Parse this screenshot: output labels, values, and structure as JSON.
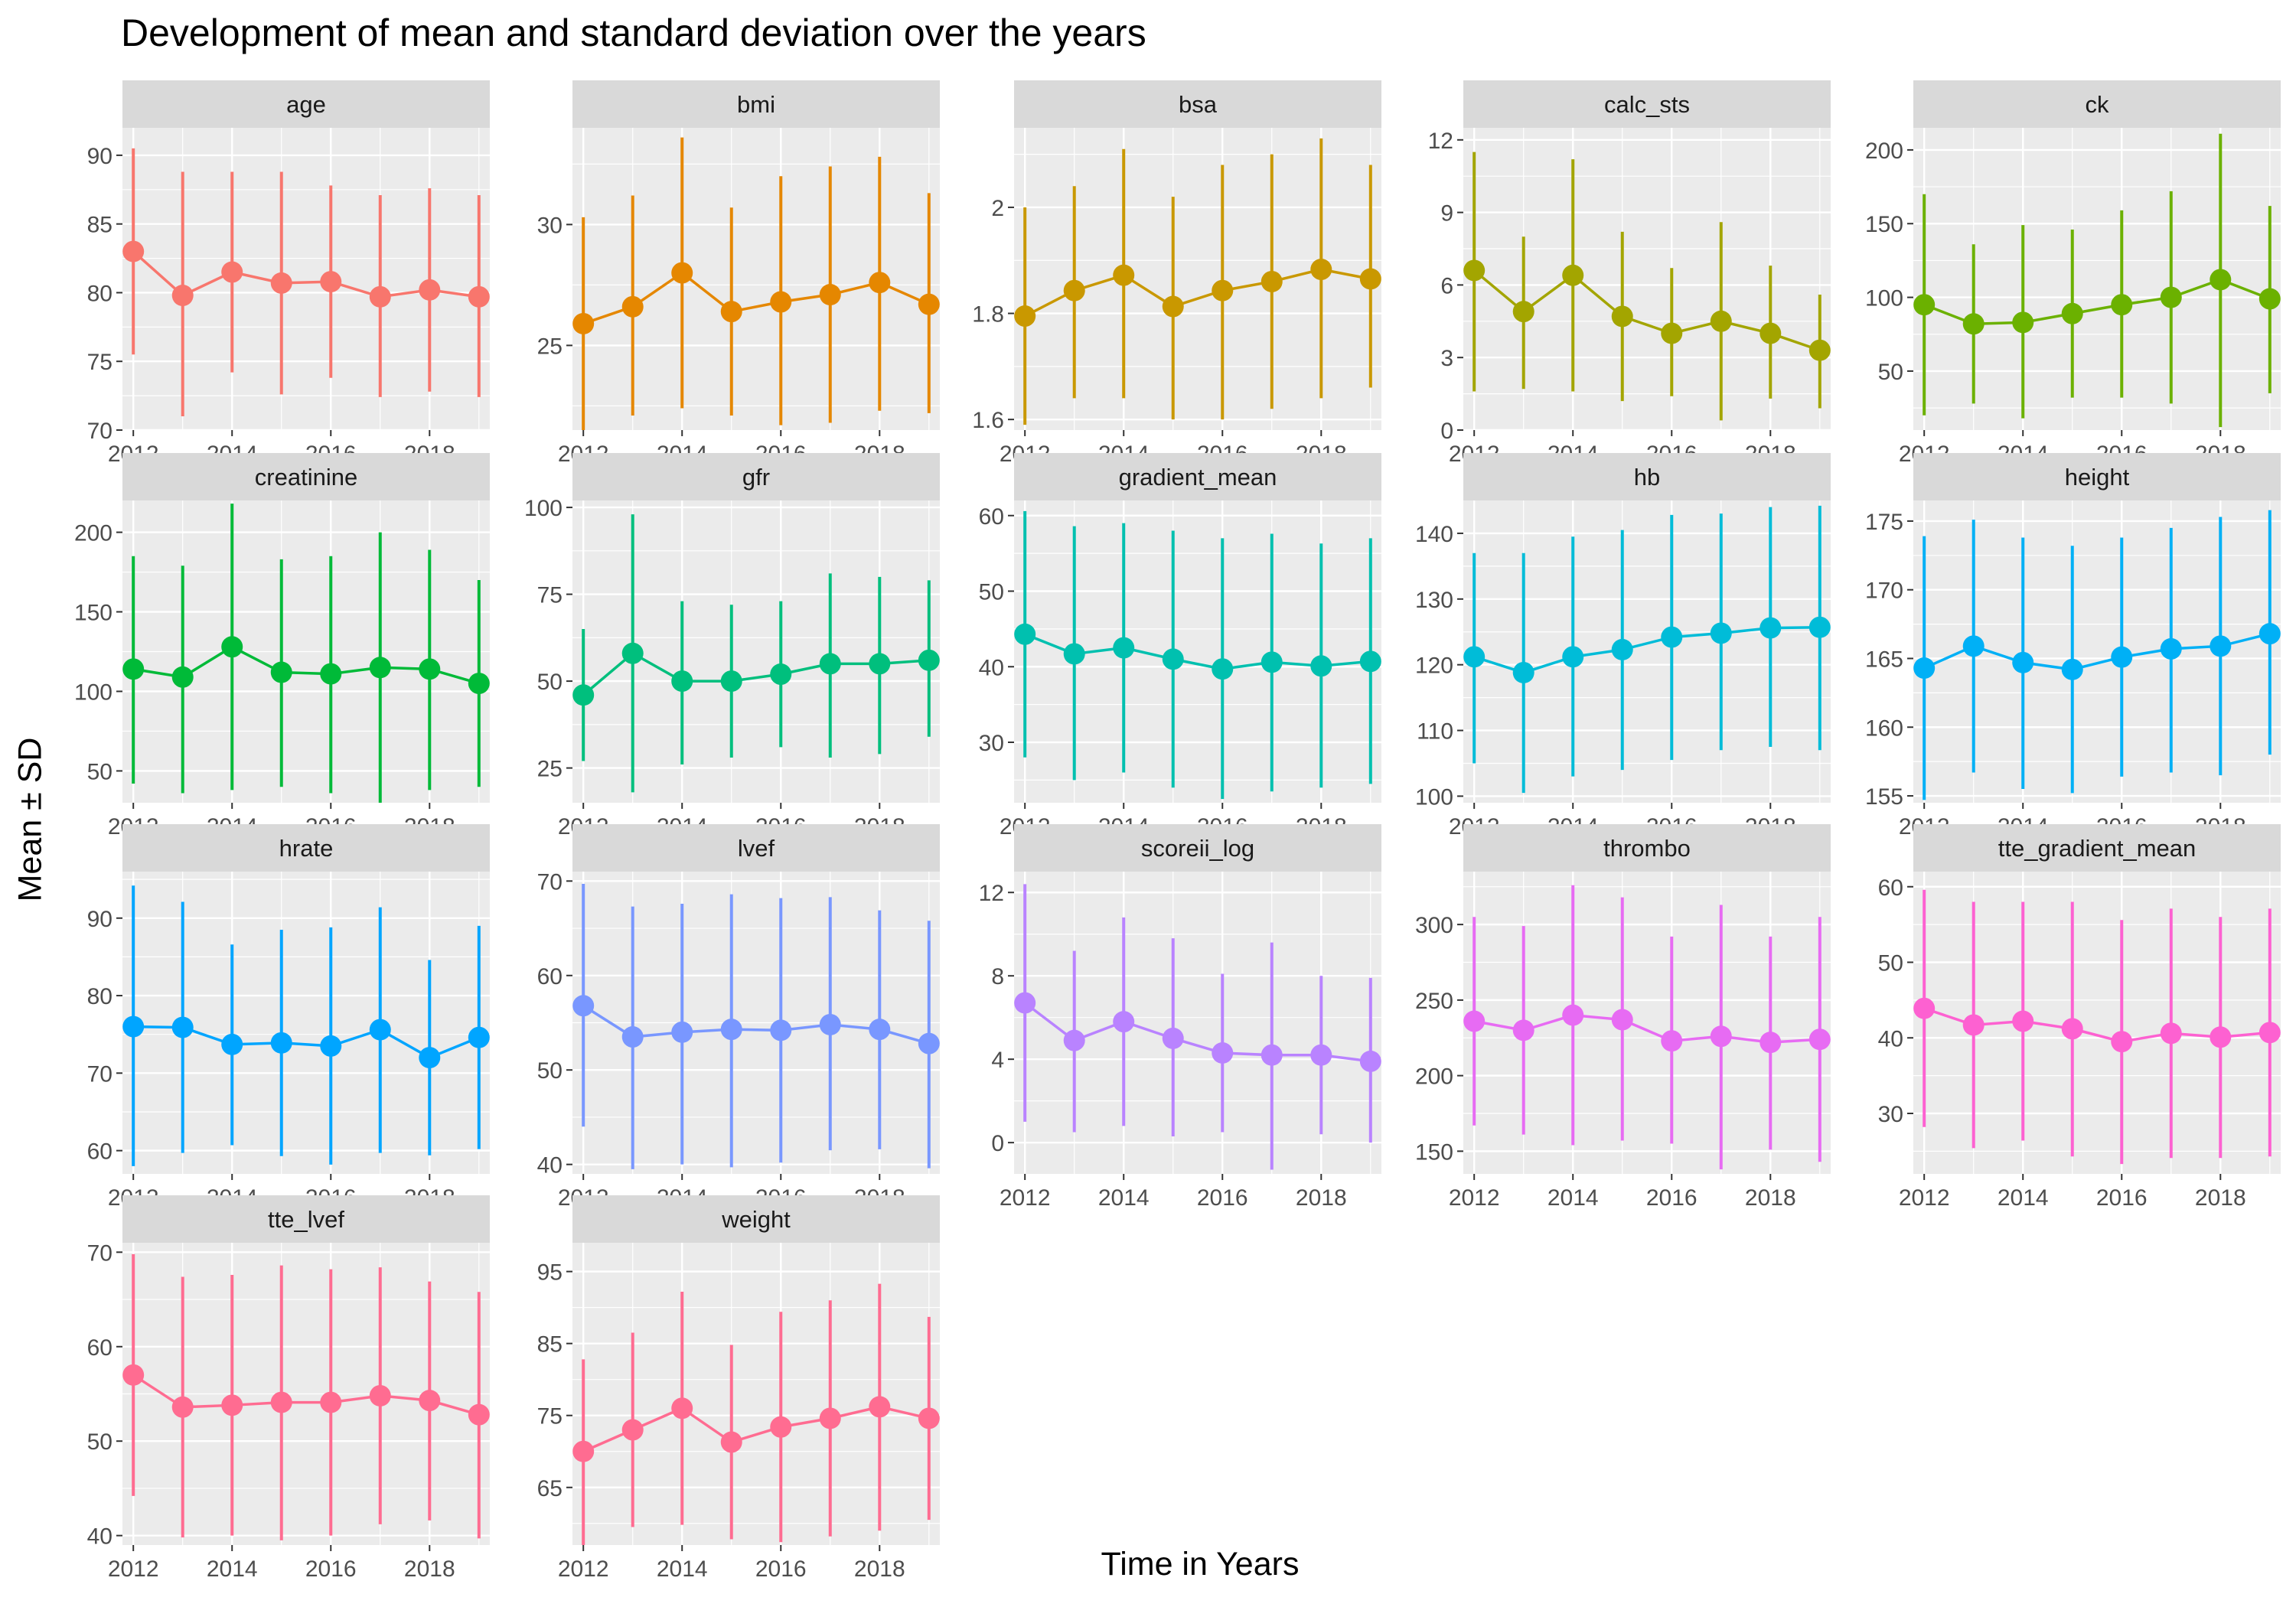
{
  "title": "Development of mean and standard deviation over the years",
  "xlabel": "Time in Years",
  "ylabel": "Mean ± SD",
  "chart_data": {
    "type": "line",
    "facet_layout": "wrap, 5 columns",
    "x": [
      2012,
      2013,
      2014,
      2015,
      2016,
      2017,
      2018,
      2019
    ],
    "x_ticks": [
      2012,
      2014,
      2016,
      2018
    ],
    "grid": true,
    "panels": [
      {
        "name": "age",
        "color": "#F8766D",
        "ylim": [
          70,
          92
        ],
        "yticks": [
          70,
          75,
          80,
          85,
          90
        ],
        "mean": [
          83.0,
          79.8,
          81.5,
          80.7,
          80.8,
          79.7,
          80.2,
          79.7
        ],
        "lower": [
          75.5,
          71.0,
          74.2,
          72.6,
          73.8,
          72.4,
          72.8,
          72.4
        ],
        "upper": [
          90.5,
          88.8,
          88.8,
          88.8,
          87.8,
          87.1,
          87.6,
          87.1
        ]
      },
      {
        "name": "bmi",
        "color": "#E58700",
        "ylim": [
          21.5,
          34
        ],
        "yticks": [
          25,
          30
        ],
        "mean": [
          25.9,
          26.6,
          28.0,
          26.4,
          26.8,
          27.1,
          27.6,
          26.7
        ],
        "lower": [
          21.5,
          22.1,
          22.4,
          22.1,
          21.7,
          21.8,
          22.3,
          22.2
        ],
        "upper": [
          30.3,
          31.2,
          33.6,
          30.7,
          32.0,
          32.4,
          32.8,
          31.3
        ]
      },
      {
        "name": "bsa",
        "color": "#C99800",
        "ylim": [
          1.58,
          2.15
        ],
        "yticks": [
          1.6,
          1.8,
          2.0
        ],
        "mean": [
          1.795,
          1.843,
          1.872,
          1.813,
          1.843,
          1.86,
          1.883,
          1.865
        ],
        "lower": [
          1.59,
          1.64,
          1.64,
          1.6,
          1.6,
          1.62,
          1.64,
          1.66
        ],
        "upper": [
          2.0,
          2.04,
          2.11,
          2.02,
          2.08,
          2.1,
          2.13,
          2.08
        ]
      },
      {
        "name": "calc_sts",
        "color": "#A3A500",
        "ylim": [
          0,
          12.5
        ],
        "yticks": [
          0,
          3,
          6,
          9,
          12
        ],
        "mean": [
          6.6,
          4.9,
          6.4,
          4.7,
          4.0,
          4.5,
          4.0,
          3.3
        ],
        "lower": [
          1.6,
          1.7,
          1.6,
          1.2,
          1.4,
          0.4,
          1.3,
          0.9
        ],
        "upper": [
          11.5,
          8.0,
          11.2,
          8.2,
          6.7,
          8.6,
          6.8,
          5.6
        ]
      },
      {
        "name": "ck",
        "color": "#6BB100",
        "ylim": [
          10,
          215
        ],
        "yticks": [
          50,
          100,
          150,
          200
        ],
        "mean": [
          95,
          82,
          83,
          89,
          95,
          100,
          112,
          99
        ],
        "lower": [
          20,
          28,
          18,
          32,
          32,
          28,
          12,
          35
        ],
        "upper": [
          170,
          136,
          149,
          146,
          159,
          172,
          211,
          162
        ]
      },
      {
        "name": "creatinine",
        "color": "#00BA38",
        "ylim": [
          30,
          220
        ],
        "yticks": [
          50,
          100,
          150,
          200
        ],
        "mean": [
          114,
          109,
          128,
          112,
          111,
          115,
          114,
          105
        ],
        "lower": [
          42,
          36,
          38,
          40,
          36,
          30,
          38,
          40
        ],
        "upper": [
          185,
          179,
          218,
          183,
          185,
          200,
          189,
          170
        ]
      },
      {
        "name": "gfr",
        "color": "#00BF7D",
        "ylim": [
          15,
          102
        ],
        "yticks": [
          25,
          50,
          75,
          100
        ],
        "mean": [
          46,
          58,
          50,
          50,
          52,
          55,
          55,
          56
        ],
        "lower": [
          27,
          18,
          26,
          28,
          31,
          28,
          29,
          34
        ],
        "upper": [
          65,
          98,
          73,
          72,
          73,
          81,
          80,
          79
        ]
      },
      {
        "name": "gradient_mean",
        "color": "#00C0AF",
        "ylim": [
          22,
          62
        ],
        "yticks": [
          30,
          40,
          50,
          60
        ],
        "mean": [
          44.3,
          41.7,
          42.5,
          41.0,
          39.7,
          40.6,
          40.1,
          40.7
        ],
        "lower": [
          28.0,
          25.0,
          26.0,
          24.0,
          22.5,
          23.5,
          24.0,
          24.5
        ],
        "upper": [
          60.6,
          58.6,
          59.0,
          58.0,
          57.0,
          57.6,
          56.3,
          57.0
        ]
      },
      {
        "name": "hb",
        "color": "#00BCD8",
        "ylim": [
          99,
          145
        ],
        "yticks": [
          100,
          110,
          120,
          130,
          140
        ],
        "mean": [
          121.2,
          118.8,
          121.2,
          122.3,
          124.2,
          124.8,
          125.6,
          125.7
        ],
        "lower": [
          105.0,
          100.5,
          103.0,
          104.0,
          105.5,
          107.0,
          107.5,
          107.0
        ],
        "upper": [
          137.0,
          137.0,
          139.5,
          140.5,
          142.8,
          143.0,
          144.0,
          144.2
        ]
      },
      {
        "name": "height",
        "color": "#00B0F6",
        "ylim": [
          154.5,
          176.5
        ],
        "yticks": [
          155,
          160,
          165,
          170,
          175
        ],
        "mean": [
          164.3,
          165.9,
          164.7,
          164.2,
          165.1,
          165.7,
          165.9,
          166.8
        ],
        "lower": [
          154.7,
          156.7,
          155.5,
          155.2,
          156.4,
          156.7,
          156.5,
          158.0
        ],
        "upper": [
          173.9,
          175.1,
          173.8,
          173.2,
          173.8,
          174.5,
          175.3,
          175.8
        ]
      },
      {
        "name": "hrate",
        "color": "#00A5FF",
        "ylim": [
          57,
          96
        ],
        "yticks": [
          60,
          70,
          80,
          90
        ],
        "mean": [
          76.0,
          75.9,
          73.7,
          73.9,
          73.5,
          75.6,
          72.0,
          74.6
        ],
        "lower": [
          58.0,
          59.7,
          60.7,
          59.3,
          58.2,
          59.7,
          59.4,
          60.2
        ],
        "upper": [
          94.2,
          92.1,
          86.6,
          88.5,
          88.8,
          91.4,
          84.6,
          89.0
        ]
      },
      {
        "name": "lvef",
        "color": "#7997FF",
        "ylim": [
          39,
          71
        ],
        "yticks": [
          40,
          50,
          60,
          70
        ],
        "mean": [
          56.8,
          53.5,
          54.0,
          54.3,
          54.2,
          54.8,
          54.3,
          52.8
        ],
        "lower": [
          44.0,
          39.5,
          40.0,
          39.7,
          40.2,
          41.5,
          41.6,
          39.6
        ],
        "upper": [
          69.7,
          67.3,
          67.6,
          68.6,
          68.2,
          68.3,
          66.9,
          65.8
        ]
      },
      {
        "name": "scoreii_log",
        "color": "#B983FF",
        "ylim": [
          -1.5,
          13
        ],
        "yticks": [
          0,
          4,
          8,
          12
        ],
        "mean": [
          6.7,
          4.9,
          5.8,
          5.0,
          4.3,
          4.2,
          4.2,
          3.9
        ],
        "lower": [
          1.0,
          0.5,
          0.8,
          0.3,
          0.5,
          -1.3,
          0.4,
          0.0
        ],
        "upper": [
          12.4,
          9.2,
          10.8,
          9.8,
          8.1,
          9.6,
          8.0,
          7.9
        ]
      },
      {
        "name": "thrombo",
        "color": "#E76BF3",
        "ylim": [
          135,
          335
        ],
        "yticks": [
          150,
          200,
          250,
          300
        ],
        "mean": [
          236,
          230,
          240,
          237,
          223,
          226,
          222,
          224
        ],
        "lower": [
          167,
          161,
          154,
          157,
          155,
          138,
          151,
          143
        ],
        "upper": [
          305,
          299,
          326,
          318,
          292,
          313,
          292,
          305
        ]
      },
      {
        "name": "tte_gradient_mean",
        "color": "#FD61D1",
        "ylim": [
          22,
          62
        ],
        "yticks": [
          30,
          40,
          50,
          60
        ],
        "mean": [
          43.9,
          41.7,
          42.2,
          41.2,
          39.5,
          40.6,
          40.1,
          40.7
        ],
        "lower": [
          28.2,
          25.4,
          26.4,
          24.3,
          23.3,
          24.1,
          24.1,
          24.3
        ],
        "upper": [
          59.6,
          58.0,
          58.0,
          58.0,
          55.6,
          57.1,
          56.0,
          57.1
        ]
      },
      {
        "name": "tte_lvef",
        "color": "#FF6C91",
        "ylim": [
          39,
          71
        ],
        "yticks": [
          40,
          50,
          60,
          70
        ],
        "mean": [
          57.0,
          53.6,
          53.8,
          54.1,
          54.1,
          54.8,
          54.3,
          52.8
        ],
        "lower": [
          44.2,
          39.8,
          40.0,
          39.5,
          40.0,
          41.2,
          41.6,
          39.7
        ],
        "upper": [
          69.8,
          67.4,
          67.6,
          68.6,
          68.2,
          68.4,
          66.9,
          65.8
        ]
      },
      {
        "name": "weight",
        "color": "#FF6C91",
        "ylim": [
          57,
          99
        ],
        "yticks": [
          65,
          75,
          85,
          95
        ],
        "mean": [
          70.0,
          73.0,
          76.0,
          71.3,
          73.4,
          74.6,
          76.2,
          74.6
        ],
        "lower": [
          57.0,
          59.5,
          59.8,
          57.8,
          57.4,
          58.2,
          59.0,
          60.5
        ],
        "upper": [
          82.8,
          86.5,
          92.2,
          84.8,
          89.4,
          91.0,
          93.3,
          88.7
        ]
      }
    ]
  }
}
